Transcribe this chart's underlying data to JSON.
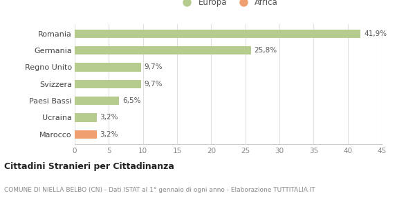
{
  "categories": [
    "Romania",
    "Germania",
    "Regno Unito",
    "Svizzera",
    "Paesi Bassi",
    "Ucraina",
    "Marocco"
  ],
  "values": [
    41.9,
    25.8,
    9.7,
    9.7,
    6.5,
    3.2,
    3.2
  ],
  "labels": [
    "41,9%",
    "25,8%",
    "9,7%",
    "9,7%",
    "6,5%",
    "3,2%",
    "3,2%"
  ],
  "colors": [
    "#b5cc8e",
    "#b5cc8e",
    "#b5cc8e",
    "#b5cc8e",
    "#b5cc8e",
    "#b5cc8e",
    "#f0a070"
  ],
  "legend": [
    {
      "label": "Europa",
      "color": "#b5cc8e"
    },
    {
      "label": "Africa",
      "color": "#f0a070"
    }
  ],
  "xlim": [
    0,
    45
  ],
  "xticks": [
    0,
    5,
    10,
    15,
    20,
    25,
    30,
    35,
    40,
    45
  ],
  "title_bold": "Cittadini Stranieri per Cittadinanza",
  "subtitle": "COMUNE DI NIELLA BELBO (CN) - Dati ISTAT al 1° gennaio di ogni anno - Elaborazione TUTTITALIA.IT",
  "background_color": "#ffffff",
  "bar_height": 0.5
}
